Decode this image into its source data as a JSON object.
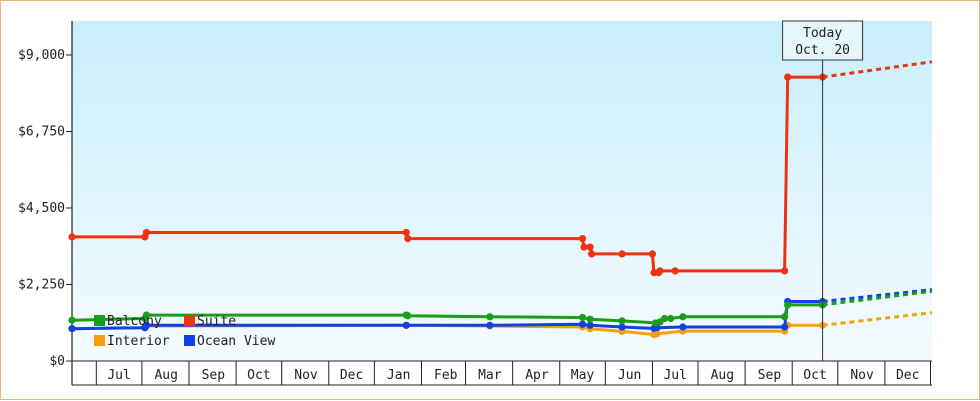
{
  "chart_data": {
    "type": "line",
    "xlabel": "",
    "ylabel": "",
    "ylim": [
      0,
      10000
    ],
    "y_ticks": [
      {
        "value": 0,
        "label": "$0"
      },
      {
        "value": 2250,
        "label": "$2,250"
      },
      {
        "value": 4500,
        "label": "$4,500"
      },
      {
        "value": 6750,
        "label": "$6,750"
      },
      {
        "value": 9000,
        "label": "$9,000"
      }
    ],
    "x_range": [
      "2015-06-14",
      "2016-12-31"
    ],
    "x_tick_labels": [
      {
        "date": "2015-07-15",
        "label": "Jul"
      },
      {
        "date": "2015-08-15",
        "label": "Aug"
      },
      {
        "date": "2015-09-15",
        "label": "Sep"
      },
      {
        "date": "2015-10-15",
        "label": "Oct"
      },
      {
        "date": "2015-11-15",
        "label": "Nov"
      },
      {
        "date": "2015-12-15",
        "label": "Dec"
      },
      {
        "date": "2016-01-15",
        "label": "Jan"
      },
      {
        "date": "2016-02-15",
        "label": "Feb"
      },
      {
        "date": "2016-03-15",
        "label": "Mar"
      },
      {
        "date": "2016-04-15",
        "label": "Apr"
      },
      {
        "date": "2016-05-15",
        "label": "May"
      },
      {
        "date": "2016-06-15",
        "label": "Jun"
      },
      {
        "date": "2016-07-15",
        "label": "Jul"
      },
      {
        "date": "2016-08-15",
        "label": "Aug"
      },
      {
        "date": "2016-09-15",
        "label": "Sep"
      },
      {
        "date": "2016-10-15",
        "label": "Oct"
      },
      {
        "date": "2016-11-15",
        "label": "Nov"
      },
      {
        "date": "2016-12-15",
        "label": "Dec"
      }
    ],
    "x_tick_bounds": [
      "2015-06-30",
      "2015-07-30",
      "2015-08-30",
      "2015-09-30",
      "2015-10-30",
      "2015-11-30",
      "2015-12-30",
      "2016-01-30",
      "2016-02-28",
      "2016-03-30",
      "2016-04-30",
      "2016-05-30",
      "2016-06-30",
      "2016-07-30",
      "2016-08-30",
      "2016-09-30",
      "2016-10-30",
      "2016-11-30",
      "2016-12-30"
    ],
    "today": {
      "date": "2016-10-20",
      "label_line1": "Today",
      "label_line2": "Oct. 20"
    },
    "legend_position": "bottom-left",
    "grid": false,
    "series": [
      {
        "name": "Balcony",
        "color": "#1a9e1a",
        "points": [
          {
            "x": "2015-06-14",
            "y": 1200
          },
          {
            "x": "2015-08-01",
            "y": 1250
          },
          {
            "x": "2015-08-02",
            "y": 1350
          },
          {
            "x": "2016-01-20",
            "y": 1350
          },
          {
            "x": "2016-01-21",
            "y": 1330
          },
          {
            "x": "2016-03-15",
            "y": 1300
          },
          {
            "x": "2016-05-15",
            "y": 1280
          },
          {
            "x": "2016-05-20",
            "y": 1230
          },
          {
            "x": "2016-06-10",
            "y": 1180
          },
          {
            "x": "2016-07-02",
            "y": 1120
          },
          {
            "x": "2016-07-05",
            "y": 1150
          },
          {
            "x": "2016-07-08",
            "y": 1250
          },
          {
            "x": "2016-07-12",
            "y": 1250
          },
          {
            "x": "2016-07-20",
            "y": 1300
          },
          {
            "x": "2016-09-25",
            "y": 1300
          },
          {
            "x": "2016-09-27",
            "y": 1650
          },
          {
            "x": "2016-10-20",
            "y": 1650
          }
        ],
        "projection": [
          {
            "x": "2016-10-20",
            "y": 1650
          },
          {
            "x": "2016-12-31",
            "y": 2050
          }
        ]
      },
      {
        "name": "Suite",
        "color": "#ee3311",
        "points": [
          {
            "x": "2015-06-14",
            "y": 3650
          },
          {
            "x": "2015-08-01",
            "y": 3650
          },
          {
            "x": "2015-08-02",
            "y": 3780
          },
          {
            "x": "2016-01-20",
            "y": 3780
          },
          {
            "x": "2016-01-21",
            "y": 3600
          },
          {
            "x": "2016-05-15",
            "y": 3600
          },
          {
            "x": "2016-05-16",
            "y": 3350
          },
          {
            "x": "2016-05-20",
            "y": 3350
          },
          {
            "x": "2016-05-21",
            "y": 3150
          },
          {
            "x": "2016-06-10",
            "y": 3150
          },
          {
            "x": "2016-06-30",
            "y": 3150
          },
          {
            "x": "2016-07-01",
            "y": 2600
          },
          {
            "x": "2016-07-04",
            "y": 2600
          },
          {
            "x": "2016-07-05",
            "y": 2650
          },
          {
            "x": "2016-07-15",
            "y": 2650
          },
          {
            "x": "2016-09-25",
            "y": 2650
          },
          {
            "x": "2016-09-27",
            "y": 8350
          },
          {
            "x": "2016-10-20",
            "y": 8350
          }
        ],
        "projection": [
          {
            "x": "2016-10-20",
            "y": 8350
          },
          {
            "x": "2016-12-31",
            "y": 8800
          }
        ]
      },
      {
        "name": "Interior",
        "color": "#f5a010",
        "points": [
          {
            "x": "2015-06-14",
            "y": 950
          },
          {
            "x": "2015-08-01",
            "y": 980
          },
          {
            "x": "2015-08-02",
            "y": 1030
          },
          {
            "x": "2016-01-20",
            "y": 1050
          },
          {
            "x": "2016-03-15",
            "y": 1030
          },
          {
            "x": "2016-05-15",
            "y": 1000
          },
          {
            "x": "2016-05-20",
            "y": 950
          },
          {
            "x": "2016-06-10",
            "y": 870
          },
          {
            "x": "2016-07-01",
            "y": 780
          },
          {
            "x": "2016-07-03",
            "y": 800
          },
          {
            "x": "2016-07-20",
            "y": 880
          },
          {
            "x": "2016-09-25",
            "y": 880
          },
          {
            "x": "2016-09-27",
            "y": 1050
          },
          {
            "x": "2016-10-20",
            "y": 1050
          }
        ],
        "projection": [
          {
            "x": "2016-10-20",
            "y": 1050
          },
          {
            "x": "2016-12-31",
            "y": 1420
          }
        ]
      },
      {
        "name": "Ocean View",
        "color": "#1040e8",
        "points": [
          {
            "x": "2015-06-14",
            "y": 950
          },
          {
            "x": "2015-08-01",
            "y": 980
          },
          {
            "x": "2015-08-02",
            "y": 1050
          },
          {
            "x": "2016-01-20",
            "y": 1050
          },
          {
            "x": "2016-03-15",
            "y": 1050
          },
          {
            "x": "2016-05-15",
            "y": 1080
          },
          {
            "x": "2016-05-20",
            "y": 1050
          },
          {
            "x": "2016-06-10",
            "y": 1000
          },
          {
            "x": "2016-07-01",
            "y": 960
          },
          {
            "x": "2016-07-03",
            "y": 980
          },
          {
            "x": "2016-07-20",
            "y": 1000
          },
          {
            "x": "2016-09-25",
            "y": 1000
          },
          {
            "x": "2016-09-27",
            "y": 1750
          },
          {
            "x": "2016-10-20",
            "y": 1750
          }
        ],
        "projection": [
          {
            "x": "2016-10-20",
            "y": 1750
          },
          {
            "x": "2016-12-31",
            "y": 2100
          }
        ]
      }
    ]
  }
}
